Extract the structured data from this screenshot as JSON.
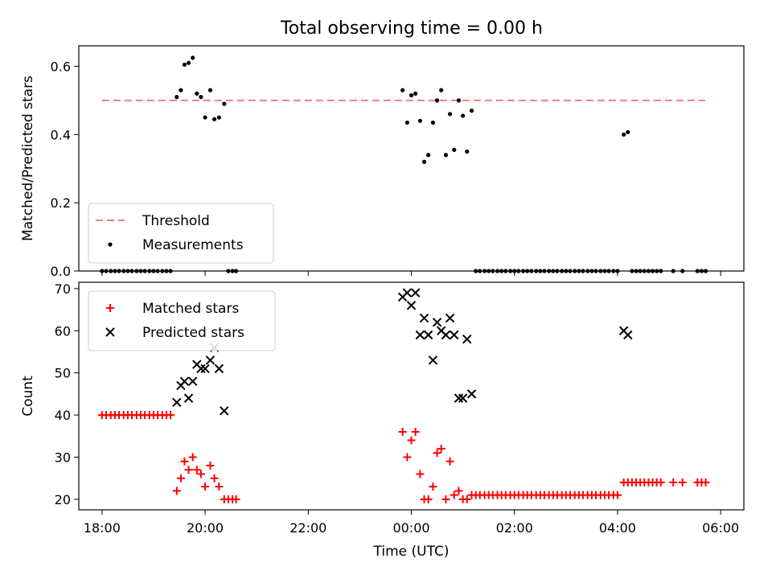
{
  "chart_data": [
    {
      "type": "scatter",
      "title": "Total observing time = 0.00 h",
      "ylabel": "Matched/Predicted stars",
      "xlabel": "",
      "xlim": [
        -0.45,
        12.45
      ],
      "ylim": [
        0.0,
        0.66
      ],
      "yticks": [
        0.0,
        0.2,
        0.4,
        0.6
      ],
      "ytick_labels": [
        "0.0",
        "0.2",
        "0.4",
        "0.6"
      ],
      "xticks": [
        0,
        2,
        4,
        6,
        8,
        10,
        12
      ],
      "legend": {
        "position": "lower-left",
        "entries": [
          "Threshold",
          "Measurements"
        ]
      },
      "threshold": {
        "name": "Threshold",
        "y": 0.5,
        "x_start": 0,
        "x_end": 11.7,
        "color": "#f08080",
        "style": "dashed"
      },
      "series": [
        {
          "name": "Measurements",
          "color": "#000000",
          "marker": "dot",
          "points": [
            [
              0.0,
              0
            ],
            [
              0.08,
              0
            ],
            [
              0.17,
              0
            ],
            [
              0.25,
              0
            ],
            [
              0.33,
              0
            ],
            [
              0.42,
              0
            ],
            [
              0.5,
              0
            ],
            [
              0.58,
              0
            ],
            [
              0.67,
              0
            ],
            [
              0.75,
              0
            ],
            [
              0.83,
              0
            ],
            [
              0.92,
              0
            ],
            [
              1.0,
              0
            ],
            [
              1.08,
              0
            ],
            [
              1.17,
              0
            ],
            [
              1.25,
              0
            ],
            [
              1.33,
              0
            ],
            [
              1.45,
              0.51
            ],
            [
              1.53,
              0.53
            ],
            [
              1.6,
              0.605
            ],
            [
              1.68,
              0.61
            ],
            [
              1.76,
              0.625
            ],
            [
              1.84,
              0.52
            ],
            [
              1.92,
              0.51
            ],
            [
              2.0,
              0.45
            ],
            [
              2.1,
              0.53
            ],
            [
              2.18,
              0.445
            ],
            [
              2.27,
              0.45
            ],
            [
              2.37,
              0.49
            ],
            [
              2.45,
              0
            ],
            [
              2.53,
              0
            ],
            [
              2.6,
              0
            ],
            [
              5.83,
              0.53
            ],
            [
              5.92,
              0.435
            ],
            [
              6.0,
              0.515
            ],
            [
              6.08,
              0.52
            ],
            [
              6.17,
              0.44
            ],
            [
              6.25,
              0.32
            ],
            [
              6.33,
              0.34
            ],
            [
              6.42,
              0.435
            ],
            [
              6.5,
              0.5
            ],
            [
              6.58,
              0.53
            ],
            [
              6.67,
              0.34
            ],
            [
              6.75,
              0.46
            ],
            [
              6.83,
              0.355
            ],
            [
              6.92,
              0.5
            ],
            [
              7.0,
              0.455
            ],
            [
              7.08,
              0.35
            ],
            [
              7.17,
              0.47
            ],
            [
              7.25,
              0
            ],
            [
              7.33,
              0
            ],
            [
              7.42,
              0
            ],
            [
              7.5,
              0
            ],
            [
              7.58,
              0
            ],
            [
              7.67,
              0
            ],
            [
              7.75,
              0
            ],
            [
              7.83,
              0
            ],
            [
              7.92,
              0
            ],
            [
              8.0,
              0
            ],
            [
              8.08,
              0
            ],
            [
              8.17,
              0
            ],
            [
              8.25,
              0
            ],
            [
              8.33,
              0
            ],
            [
              8.42,
              0
            ],
            [
              8.5,
              0
            ],
            [
              8.58,
              0
            ],
            [
              8.67,
              0
            ],
            [
              8.75,
              0
            ],
            [
              8.83,
              0
            ],
            [
              8.92,
              0
            ],
            [
              9.0,
              0
            ],
            [
              9.08,
              0
            ],
            [
              9.17,
              0
            ],
            [
              9.25,
              0
            ],
            [
              9.33,
              0
            ],
            [
              9.42,
              0
            ],
            [
              9.5,
              0
            ],
            [
              9.58,
              0
            ],
            [
              9.67,
              0
            ],
            [
              9.75,
              0
            ],
            [
              9.83,
              0
            ],
            [
              9.92,
              0
            ],
            [
              10.0,
              0
            ],
            [
              10.12,
              0.4
            ],
            [
              10.2,
              0.407
            ],
            [
              10.28,
              0
            ],
            [
              10.36,
              0
            ],
            [
              10.44,
              0
            ],
            [
              10.52,
              0
            ],
            [
              10.6,
              0
            ],
            [
              10.68,
              0
            ],
            [
              10.76,
              0
            ],
            [
              10.84,
              0
            ],
            [
              11.08,
              0
            ],
            [
              11.26,
              0
            ],
            [
              11.55,
              0
            ],
            [
              11.63,
              0
            ],
            [
              11.71,
              0
            ]
          ]
        }
      ]
    },
    {
      "type": "scatter",
      "title": "",
      "ylabel": "Count",
      "xlabel": "Time (UTC)",
      "xlim": [
        -0.45,
        12.45
      ],
      "ylim": [
        17.5,
        71.5
      ],
      "yticks": [
        20,
        30,
        40,
        50,
        60,
        70
      ],
      "ytick_labels": [
        "20",
        "30",
        "40",
        "50",
        "60",
        "70"
      ],
      "xticks": [
        0,
        2,
        4,
        6,
        8,
        10,
        12
      ],
      "xtick_labels": [
        "18:00",
        "20:00",
        "22:00",
        "00:00",
        "02:00",
        "04:00",
        "06:00"
      ],
      "legend": {
        "position": "upper-left",
        "entries": [
          "Matched stars",
          "Predicted stars"
        ]
      },
      "series": [
        {
          "name": "Matched stars",
          "color": "#ff0000",
          "marker": "plus",
          "points": [
            [
              0.0,
              40
            ],
            [
              0.08,
              40
            ],
            [
              0.17,
              40
            ],
            [
              0.25,
              40
            ],
            [
              0.33,
              40
            ],
            [
              0.42,
              40
            ],
            [
              0.5,
              40
            ],
            [
              0.58,
              40
            ],
            [
              0.67,
              40
            ],
            [
              0.75,
              40
            ],
            [
              0.83,
              40
            ],
            [
              0.92,
              40
            ],
            [
              1.0,
              40
            ],
            [
              1.08,
              40
            ],
            [
              1.17,
              40
            ],
            [
              1.25,
              40
            ],
            [
              1.33,
              40
            ],
            [
              1.45,
              22
            ],
            [
              1.53,
              25
            ],
            [
              1.6,
              29
            ],
            [
              1.68,
              27
            ],
            [
              1.76,
              30
            ],
            [
              1.84,
              27
            ],
            [
              1.92,
              26
            ],
            [
              2.0,
              23
            ],
            [
              2.1,
              28
            ],
            [
              2.18,
              25
            ],
            [
              2.27,
              23
            ],
            [
              2.37,
              20
            ],
            [
              2.45,
              20
            ],
            [
              2.53,
              20
            ],
            [
              2.6,
              20
            ],
            [
              5.83,
              36
            ],
            [
              5.92,
              30
            ],
            [
              6.0,
              34
            ],
            [
              6.08,
              36
            ],
            [
              6.17,
              26
            ],
            [
              6.25,
              20
            ],
            [
              6.33,
              20
            ],
            [
              6.42,
              23
            ],
            [
              6.5,
              31
            ],
            [
              6.58,
              32
            ],
            [
              6.67,
              20
            ],
            [
              6.75,
              29
            ],
            [
              6.83,
              21
            ],
            [
              6.92,
              22
            ],
            [
              7.0,
              20
            ],
            [
              7.08,
              20
            ],
            [
              7.17,
              21
            ],
            [
              7.25,
              21
            ],
            [
              7.33,
              21
            ],
            [
              7.42,
              21
            ],
            [
              7.5,
              21
            ],
            [
              7.58,
              21
            ],
            [
              7.67,
              21
            ],
            [
              7.75,
              21
            ],
            [
              7.83,
              21
            ],
            [
              7.92,
              21
            ],
            [
              8.0,
              21
            ],
            [
              8.08,
              21
            ],
            [
              8.17,
              21
            ],
            [
              8.25,
              21
            ],
            [
              8.33,
              21
            ],
            [
              8.42,
              21
            ],
            [
              8.5,
              21
            ],
            [
              8.58,
              21
            ],
            [
              8.67,
              21
            ],
            [
              8.75,
              21
            ],
            [
              8.83,
              21
            ],
            [
              8.92,
              21
            ],
            [
              9.0,
              21
            ],
            [
              9.08,
              21
            ],
            [
              9.17,
              21
            ],
            [
              9.25,
              21
            ],
            [
              9.33,
              21
            ],
            [
              9.42,
              21
            ],
            [
              9.5,
              21
            ],
            [
              9.58,
              21
            ],
            [
              9.67,
              21
            ],
            [
              9.75,
              21
            ],
            [
              9.83,
              21
            ],
            [
              9.92,
              21
            ],
            [
              10.0,
              21
            ],
            [
              10.12,
              24
            ],
            [
              10.2,
              24
            ],
            [
              10.28,
              24
            ],
            [
              10.36,
              24
            ],
            [
              10.44,
              24
            ],
            [
              10.52,
              24
            ],
            [
              10.6,
              24
            ],
            [
              10.68,
              24
            ],
            [
              10.76,
              24
            ],
            [
              10.84,
              24
            ],
            [
              11.08,
              24
            ],
            [
              11.26,
              24
            ],
            [
              11.55,
              24
            ],
            [
              11.63,
              24
            ],
            [
              11.71,
              24
            ]
          ]
        },
        {
          "name": "Predicted stars",
          "color": "#000000",
          "marker": "x",
          "points": [
            [
              1.45,
              43
            ],
            [
              1.53,
              47
            ],
            [
              1.6,
              48
            ],
            [
              1.68,
              44
            ],
            [
              1.76,
              48
            ],
            [
              1.84,
              52
            ],
            [
              1.92,
              51
            ],
            [
              2.0,
              51
            ],
            [
              2.1,
              53
            ],
            [
              2.18,
              56
            ],
            [
              2.27,
              51
            ],
            [
              2.37,
              41
            ],
            [
              5.83,
              68
            ],
            [
              5.92,
              69
            ],
            [
              6.0,
              66
            ],
            [
              6.08,
              69
            ],
            [
              6.17,
              59
            ],
            [
              6.25,
              63
            ],
            [
              6.33,
              59
            ],
            [
              6.42,
              53
            ],
            [
              6.5,
              62
            ],
            [
              6.58,
              60
            ],
            [
              6.67,
              59
            ],
            [
              6.75,
              63
            ],
            [
              6.83,
              59
            ],
            [
              6.92,
              44
            ],
            [
              7.0,
              44
            ],
            [
              7.08,
              58
            ],
            [
              7.17,
              45
            ],
            [
              10.12,
              60
            ],
            [
              10.2,
              59
            ]
          ]
        }
      ]
    }
  ]
}
